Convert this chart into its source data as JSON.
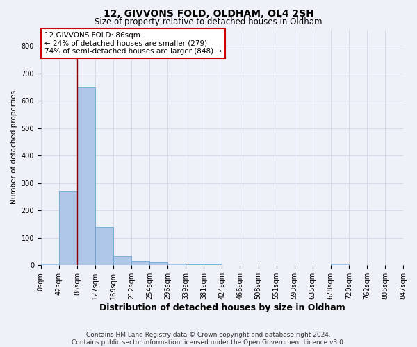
{
  "title": "12, GIVVONS FOLD, OLDHAM, OL4 2SH",
  "subtitle": "Size of property relative to detached houses in Oldham",
  "xlabel": "Distribution of detached houses by size in Oldham",
  "ylabel": "Number of detached properties",
  "footer_line1": "Contains HM Land Registry data © Crown copyright and database right 2024.",
  "footer_line2": "Contains public sector information licensed under the Open Government Licence v3.0.",
  "bin_labels": [
    "0sqm",
    "42sqm",
    "85sqm",
    "127sqm",
    "169sqm",
    "212sqm",
    "254sqm",
    "296sqm",
    "339sqm",
    "381sqm",
    "424sqm",
    "466sqm",
    "508sqm",
    "551sqm",
    "593sqm",
    "635sqm",
    "678sqm",
    "720sqm",
    "762sqm",
    "805sqm",
    "847sqm"
  ],
  "bar_values": [
    5,
    271,
    648,
    140,
    33,
    15,
    10,
    5,
    4,
    4,
    0,
    0,
    0,
    0,
    0,
    0,
    5,
    0,
    0,
    0
  ],
  "bar_color": "#aec6e8",
  "bar_edge_color": "#5a9fd4",
  "grid_color": "#d0d8e8",
  "red_line_bin": 2,
  "annotation_line1": "12 GIVVONS FOLD: 86sqm",
  "annotation_line2": "← 24% of detached houses are smaller (279)",
  "annotation_line3": "74% of semi-detached houses are larger (848) →",
  "ylim": [
    0,
    860
  ],
  "yticks": [
    0,
    100,
    200,
    300,
    400,
    500,
    600,
    700,
    800
  ],
  "background_color": "#eef2f8",
  "plot_bg_color": "#eef2f8",
  "title_fontsize": 10,
  "subtitle_fontsize": 8.5,
  "ylabel_fontsize": 7.5,
  "xlabel_fontsize": 9,
  "tick_fontsize": 7,
  "footer_fontsize": 6.5
}
